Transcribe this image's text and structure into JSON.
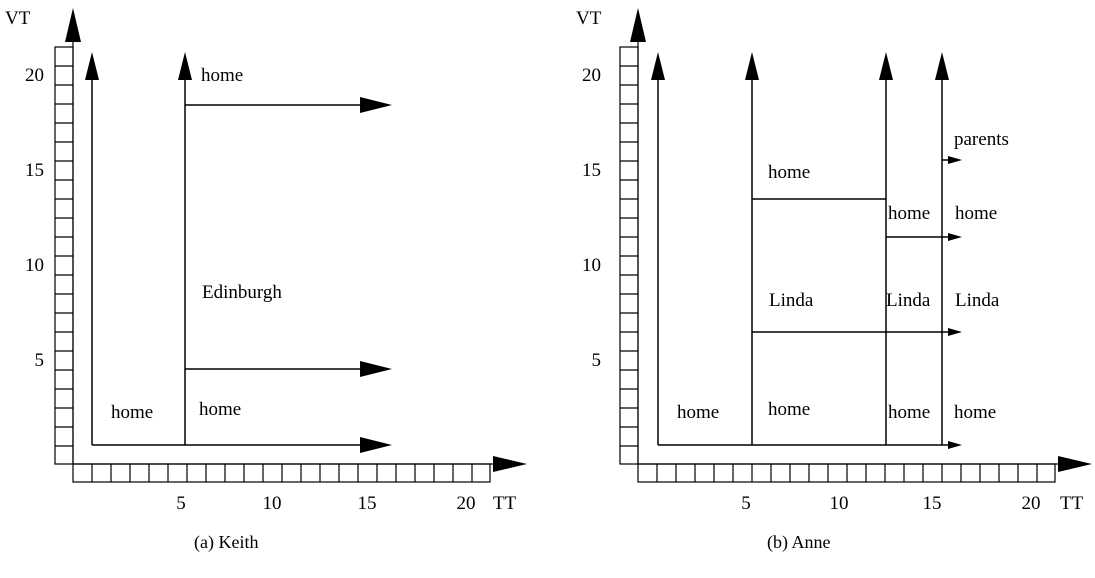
{
  "panels": [
    {
      "id": "a",
      "caption": "(a) Keith",
      "y_axis_label": "VT",
      "x_axis_label": "TT",
      "y_ticks": [
        "5",
        "10",
        "15",
        "20"
      ],
      "x_ticks": [
        "5",
        "10",
        "15",
        "20"
      ],
      "region_labels": [
        "home",
        "home",
        "Edinburgh",
        "home"
      ]
    },
    {
      "id": "b",
      "caption": "(b) Anne",
      "y_axis_label": "VT",
      "x_axis_label": "TT",
      "y_ticks": [
        "5",
        "10",
        "15",
        "20"
      ],
      "x_ticks": [
        "5",
        "10",
        "15",
        "20"
      ],
      "region_labels": [
        "home",
        "home",
        "home",
        "home",
        "Linda",
        "Linda",
        "Linda",
        "home",
        "home",
        "home",
        "parents"
      ]
    }
  ]
}
